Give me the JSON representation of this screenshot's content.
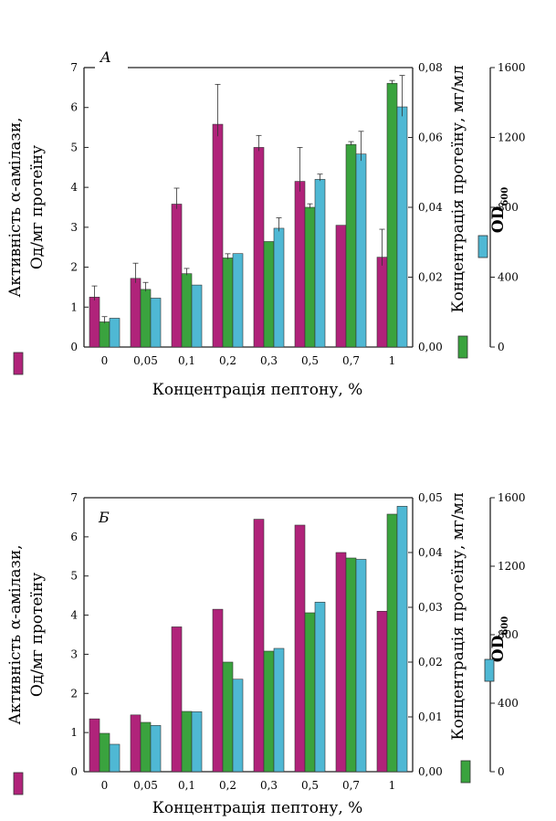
{
  "colors": {
    "activity": "#b0237a",
    "protein": "#3aa33e",
    "od": "#4fb8d4"
  },
  "chart_data": [
    {
      "type": "bar",
      "panel": "A",
      "categories": [
        "0",
        "0,05",
        "0,1",
        "0,2",
        "0,3",
        "0,5",
        "0,7",
        "1"
      ],
      "xlabel": "Концентрація пептону, %",
      "ylabel_left": "Активність α-амілази, Од/мг протеїну",
      "ylabel_right": "Концентрація протеїну, мг/мл",
      "ylabel_od": "OD",
      "ylabel_od_sub": "600",
      "left_ticks": [
        "0",
        "1",
        "2",
        "3",
        "4",
        "5",
        "6",
        "7"
      ],
      "right_ticks": [
        "0,00",
        "0,02",
        "0,04",
        "0,06",
        "0,08"
      ],
      "od_ticks": [
        "0",
        "400",
        "800",
        "1200",
        "1600"
      ],
      "ylim_left": [
        0,
        7
      ],
      "ylim_right": [
        0,
        0.08
      ],
      "ylim_od": [
        0,
        1600
      ],
      "error_bars": true,
      "series": [
        {
          "key": "activity",
          "axis": "left",
          "values": [
            1.25,
            1.72,
            3.58,
            5.58,
            5.0,
            4.15,
            3.05,
            2.25
          ],
          "errors": [
            0.28,
            0.38,
            0.4,
            1.0,
            0.3,
            0.85,
            0,
            0.7
          ]
        },
        {
          "key": "protein",
          "axis": "right",
          "values": [
            0.0072,
            0.0165,
            0.021,
            0.0255,
            0.0302,
            0.04,
            0.058,
            0.0755
          ],
          "errors": [
            0.0015,
            0.002,
            0.0015,
            0.0012,
            0,
            0.001,
            0.0008,
            0.0008
          ]
        },
        {
          "key": "od",
          "axis": "od",
          "values": [
            165,
            280,
            355,
            535,
            680,
            960,
            1105,
            1375
          ],
          "errors": [
            0,
            0,
            0,
            0,
            60,
            30,
            130,
            180
          ]
        }
      ]
    },
    {
      "type": "bar",
      "panel": "Б",
      "categories": [
        "0",
        "0,05",
        "0,1",
        "0,2",
        "0,3",
        "0,5",
        "0,7",
        "1"
      ],
      "xlabel": "Концентрація пептону, %",
      "ylabel_left": "Активність α-амілази, Од/мг протеїну",
      "ylabel_right": "Концентрація протеїну, мг/мл",
      "ylabel_od": "OD",
      "ylabel_od_sub": "600",
      "left_ticks": [
        "0",
        "1",
        "2",
        "3",
        "4",
        "5",
        "6",
        "7"
      ],
      "right_ticks": [
        "0,00",
        "0,01",
        "0,02",
        "0,03",
        "0,04",
        "0,05"
      ],
      "od_ticks": [
        "0",
        "400",
        "800",
        "1200",
        "1600"
      ],
      "ylim_left": [
        0,
        7
      ],
      "ylim_right": [
        0,
        0.05
      ],
      "ylim_od": [
        0,
        1600
      ],
      "error_bars": false,
      "series": [
        {
          "key": "activity",
          "axis": "left",
          "values": [
            1.35,
            1.45,
            3.7,
            4.15,
            6.45,
            6.3,
            5.6,
            4.1
          ]
        },
        {
          "key": "protein",
          "axis": "right",
          "values": [
            0.007,
            0.009,
            0.011,
            0.02,
            0.022,
            0.029,
            0.039,
            0.047
          ]
        },
        {
          "key": "od",
          "axis": "od",
          "values": [
            160,
            270,
            350,
            540,
            720,
            990,
            1240,
            1550
          ]
        }
      ]
    }
  ]
}
